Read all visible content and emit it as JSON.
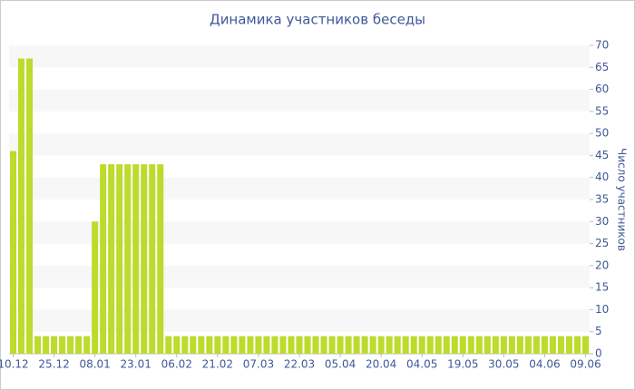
{
  "chart_data": {
    "type": "bar",
    "title": "Динамика участников беседы",
    "y_label": "Число участников",
    "categories": [
      "10.12",
      null,
      null,
      null,
      null,
      "25.12",
      null,
      null,
      null,
      null,
      "08.01",
      null,
      null,
      null,
      null,
      "23.01",
      null,
      null,
      null,
      null,
      "06.02",
      null,
      null,
      null,
      null,
      "21.02",
      null,
      null,
      null,
      null,
      "07.03",
      null,
      null,
      null,
      null,
      "22.03",
      null,
      null,
      null,
      null,
      "05.04",
      null,
      null,
      null,
      null,
      "20.04",
      null,
      null,
      null,
      null,
      "04.05",
      null,
      null,
      null,
      null,
      "19.05",
      null,
      null,
      null,
      null,
      "30.05",
      null,
      null,
      null,
      null,
      "04.06",
      null,
      null,
      null,
      null,
      "09.06"
    ],
    "values": [
      46,
      67,
      67,
      4,
      4,
      4,
      4,
      4,
      4,
      4,
      30,
      43,
      43,
      43,
      43,
      43,
      43,
      43,
      43,
      4,
      4,
      4,
      4,
      4,
      4,
      4,
      4,
      4,
      4,
      4,
      4,
      4,
      4,
      4,
      4,
      4,
      4,
      4,
      4,
      4,
      4,
      4,
      4,
      4,
      4,
      4,
      4,
      4,
      4,
      4,
      4,
      4,
      4,
      4,
      4,
      4,
      4,
      4,
      4,
      4,
      4,
      4,
      4,
      4,
      4,
      4,
      4,
      4,
      4,
      4,
      4
    ],
    "color": "#bcdb2c",
    "ylim": [
      0,
      70
    ],
    "yticks": [
      0,
      5,
      10,
      15,
      20,
      25,
      30,
      35,
      40,
      45,
      50,
      55,
      60,
      65,
      70
    ],
    "grid": true
  }
}
